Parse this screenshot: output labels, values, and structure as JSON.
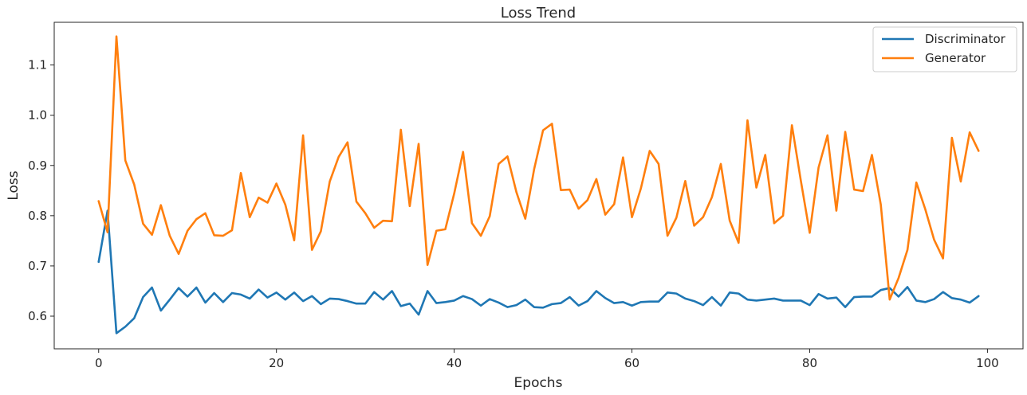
{
  "chart_data": {
    "type": "line",
    "title": "Loss Trend",
    "xlabel": "Epochs",
    "ylabel": "Loss",
    "xlim": [
      -5,
      104
    ],
    "ylim": [
      0.535,
      1.185
    ],
    "xticks": [
      0,
      20,
      40,
      60,
      80,
      100
    ],
    "yticks": [
      0.6,
      0.7,
      0.8,
      0.9,
      1.0,
      1.1
    ],
    "ytick_labels": [
      "0.6",
      "0.7",
      "0.8",
      "0.9",
      "1.0",
      "1.1"
    ],
    "grid": false,
    "legend_position": "top-right",
    "series": [
      {
        "name": "Discriminator",
        "color": "#1f77b4",
        "x": [
          0,
          1,
          2,
          3,
          4,
          5,
          6,
          7,
          8,
          9,
          10,
          11,
          12,
          13,
          14,
          15,
          16,
          17,
          18,
          19,
          20,
          21,
          22,
          23,
          24,
          25,
          26,
          27,
          28,
          29,
          30,
          31,
          32,
          33,
          34,
          35,
          36,
          37,
          38,
          39,
          40,
          41,
          42,
          43,
          44,
          45,
          46,
          47,
          48,
          49,
          50,
          51,
          52,
          53,
          54,
          55,
          56,
          57,
          58,
          59,
          60,
          61,
          62,
          63,
          64,
          65,
          66,
          67,
          68,
          69,
          70,
          71,
          72,
          73,
          74,
          75,
          76,
          77,
          78,
          79,
          80,
          81,
          82,
          83,
          84,
          85,
          86,
          87,
          88,
          89,
          90,
          91,
          92,
          93,
          94,
          95,
          96,
          97,
          98,
          99
        ],
        "values": [
          0.708,
          0.81,
          0.566,
          0.579,
          0.596,
          0.638,
          0.657,
          0.611,
          0.633,
          0.656,
          0.639,
          0.657,
          0.627,
          0.646,
          0.628,
          0.646,
          0.643,
          0.635,
          0.653,
          0.637,
          0.647,
          0.633,
          0.647,
          0.63,
          0.64,
          0.624,
          0.635,
          0.634,
          0.63,
          0.625,
          0.625,
          0.648,
          0.633,
          0.65,
          0.62,
          0.625,
          0.603,
          0.65,
          0.626,
          0.628,
          0.631,
          0.64,
          0.634,
          0.621,
          0.634,
          0.627,
          0.618,
          0.622,
          0.633,
          0.618,
          0.617,
          0.624,
          0.626,
          0.638,
          0.621,
          0.63,
          0.65,
          0.636,
          0.626,
          0.628,
          0.621,
          0.628,
          0.629,
          0.629,
          0.647,
          0.645,
          0.635,
          0.63,
          0.622,
          0.638,
          0.621,
          0.647,
          0.645,
          0.633,
          0.631,
          0.633,
          0.635,
          0.631,
          0.631,
          0.631,
          0.622,
          0.644,
          0.635,
          0.637,
          0.618,
          0.638,
          0.639,
          0.639,
          0.652,
          0.656,
          0.639,
          0.658,
          0.631,
          0.628,
          0.634,
          0.648,
          0.636,
          0.633,
          0.627,
          0.64
        ]
      },
      {
        "name": "Generator",
        "color": "#ff7f0e",
        "x": [
          0,
          1,
          2,
          3,
          4,
          5,
          6,
          7,
          8,
          9,
          10,
          11,
          12,
          13,
          14,
          15,
          16,
          17,
          18,
          19,
          20,
          21,
          22,
          23,
          24,
          25,
          26,
          27,
          28,
          29,
          30,
          31,
          32,
          33,
          34,
          35,
          36,
          37,
          38,
          39,
          40,
          41,
          42,
          43,
          44,
          45,
          46,
          47,
          48,
          49,
          50,
          51,
          52,
          53,
          54,
          55,
          56,
          57,
          58,
          59,
          60,
          61,
          62,
          63,
          64,
          65,
          66,
          67,
          68,
          69,
          70,
          71,
          72,
          73,
          74,
          75,
          76,
          77,
          78,
          79,
          80,
          81,
          82,
          83,
          84,
          85,
          86,
          87,
          88,
          89,
          90,
          91,
          92,
          93,
          94,
          95,
          96,
          97,
          98,
          99
        ],
        "values": [
          0.829,
          0.767,
          1.157,
          0.91,
          0.862,
          0.784,
          0.762,
          0.821,
          0.76,
          0.724,
          0.77,
          0.793,
          0.805,
          0.761,
          0.76,
          0.771,
          0.885,
          0.797,
          0.836,
          0.826,
          0.864,
          0.822,
          0.751,
          0.96,
          0.732,
          0.769,
          0.868,
          0.917,
          0.946,
          0.828,
          0.805,
          0.776,
          0.79,
          0.789,
          0.971,
          0.819,
          0.943,
          0.702,
          0.77,
          0.773,
          0.844,
          0.927,
          0.785,
          0.76,
          0.799,
          0.903,
          0.918,
          0.847,
          0.794,
          0.893,
          0.97,
          0.983,
          0.851,
          0.852,
          0.814,
          0.831,
          0.873,
          0.802,
          0.823,
          0.916,
          0.797,
          0.854,
          0.929,
          0.903,
          0.76,
          0.796,
          0.869,
          0.78,
          0.797,
          0.837,
          0.903,
          0.79,
          0.746,
          0.99,
          0.856,
          0.921,
          0.785,
          0.8,
          0.98,
          0.87,
          0.766,
          0.896,
          0.96,
          0.81,
          0.967,
          0.852,
          0.849,
          0.921,
          0.822,
          0.633,
          0.676,
          0.732,
          0.866,
          0.813,
          0.752,
          0.715,
          0.955,
          0.868,
          0.966,
          0.929
        ]
      }
    ]
  }
}
